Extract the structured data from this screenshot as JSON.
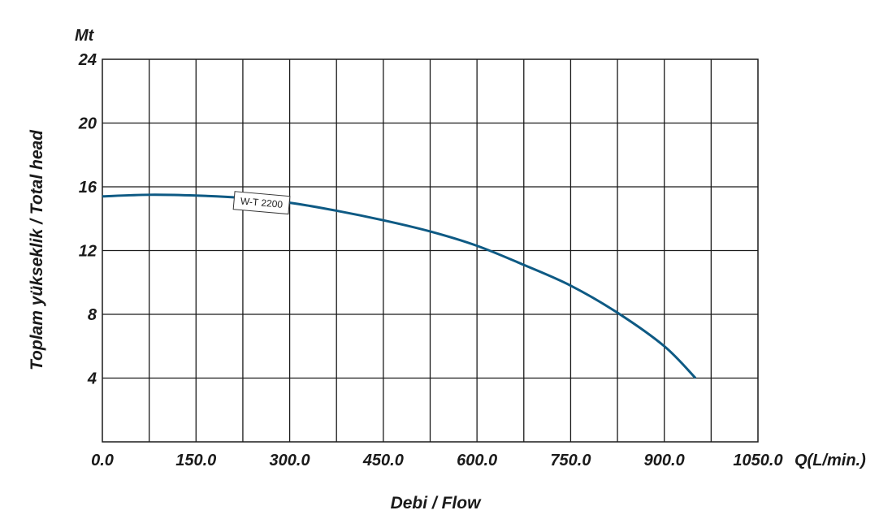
{
  "chart_data": {
    "type": "line",
    "y_unit_label": "Mt",
    "x_unit_label": "Q(L/min.)",
    "xlabel": "Debi / Flow",
    "ylabel": "Toplam yükseklik / Total head",
    "xlim": [
      0,
      1050
    ],
    "ylim": [
      0,
      24
    ],
    "x_ticks": [
      "0.0",
      "150.0",
      "300.0",
      "450.0",
      "600.0",
      "750.0",
      "900.0",
      "1050.0"
    ],
    "y_ticks": [
      "4",
      "8",
      "12",
      "16",
      "20",
      "24"
    ],
    "grid": true,
    "x_grid_step": 75,
    "y_grid_step": 4,
    "series": [
      {
        "name": "W-T 2200",
        "color": "#0e5a84",
        "x": [
          0,
          75,
          150,
          225,
          300,
          375,
          450,
          525,
          600,
          675,
          750,
          825,
          900,
          950
        ],
        "y": [
          15.4,
          15.5,
          15.45,
          15.3,
          15.0,
          14.5,
          13.9,
          13.2,
          12.3,
          11.1,
          9.8,
          8.1,
          6.0,
          4.0
        ]
      }
    ]
  }
}
